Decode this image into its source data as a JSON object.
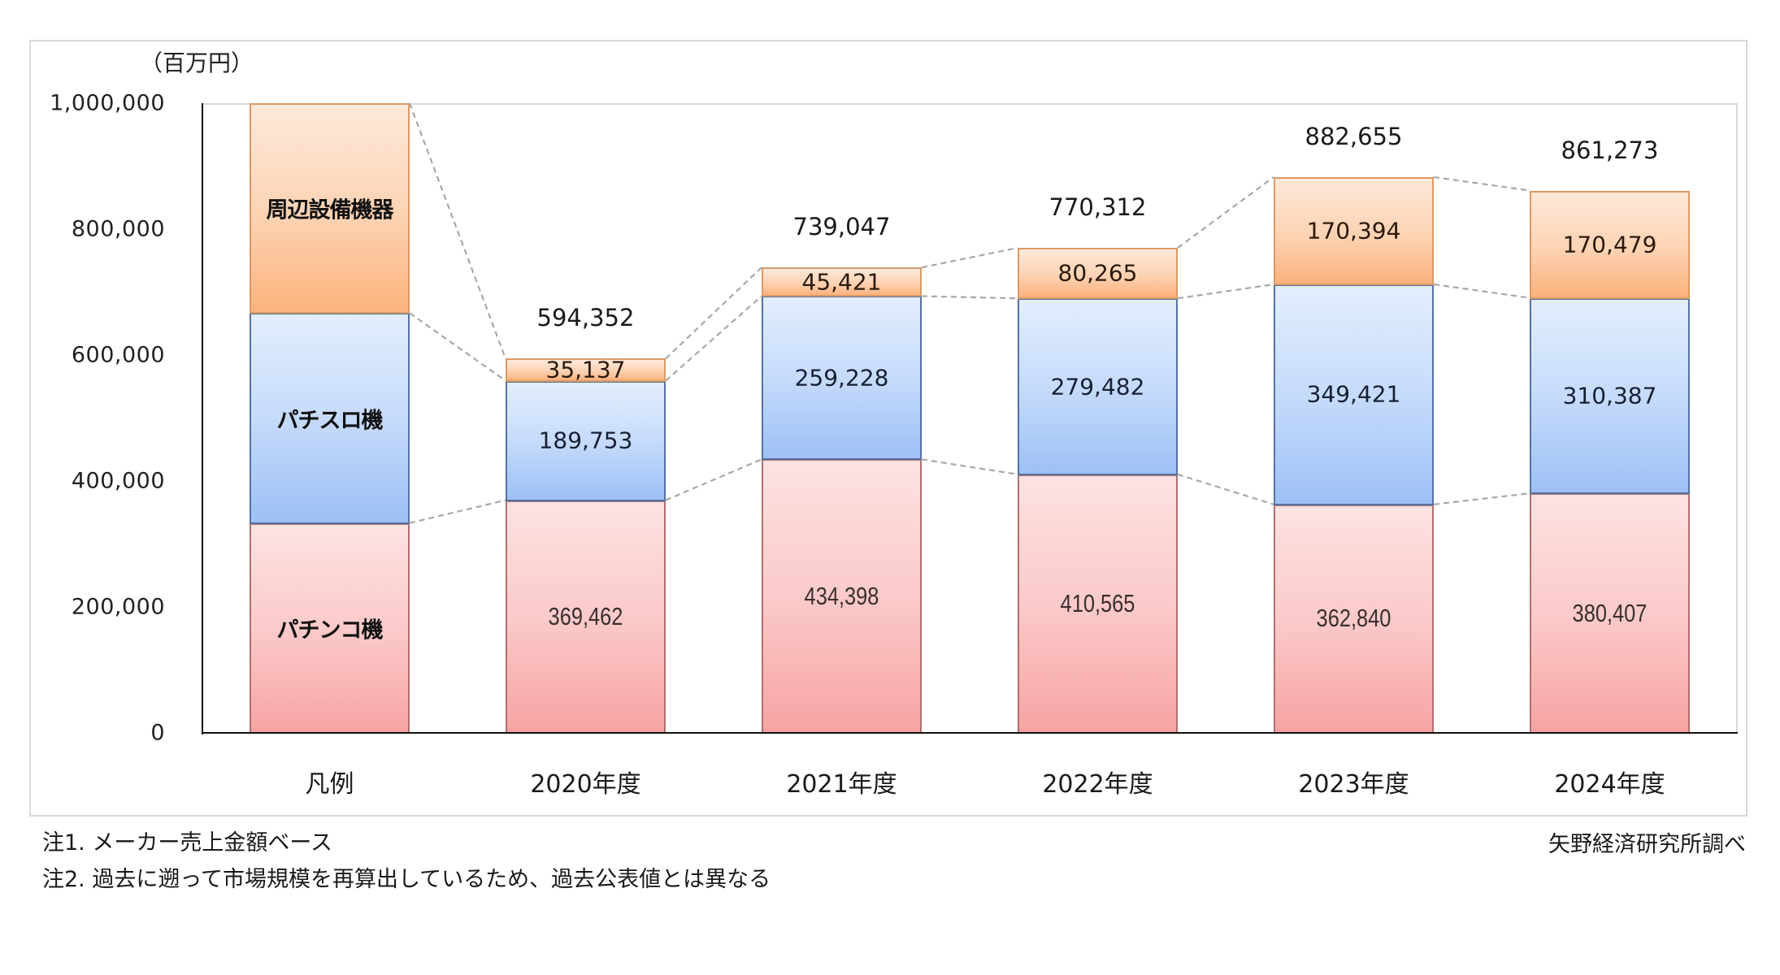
{
  "chart": {
    "unit_label": "（百万円）",
    "legend_category": "凡例",
    "source": "矢野経済研究所調べ",
    "notes": [
      "注1.  メーカー売上金額ベース",
      "注2.  過去に遡って市場規模を再算出しているため、過去公表値とは異なる"
    ]
  },
  "chart_data": {
    "type": "bar",
    "stacked": true,
    "title": "",
    "xlabel": "",
    "ylabel": "（百万円）",
    "ylim": [
      0,
      1000000
    ],
    "yticks": [
      0,
      200000,
      400000,
      600000,
      800000,
      1000000
    ],
    "ytick_labels": [
      "0",
      "200,000",
      "400,000",
      "600,000",
      "800,000",
      "1,000,000"
    ],
    "grid": false,
    "legend_position": "first-bar (凡例)",
    "categories": [
      "2020年度",
      "2021年度",
      "2022年度",
      "2023年度",
      "2024年度"
    ],
    "series": [
      {
        "name": "パチンコ機",
        "color": "#f8a3a3",
        "values": [
          369462,
          434398,
          410565,
          362840,
          380407
        ],
        "labels": [
          "369,462",
          "434,398",
          "410,565",
          "362,840",
          "380,407"
        ]
      },
      {
        "name": "パチスロ機",
        "color": "#9ec0f6",
        "values": [
          189753,
          259228,
          279482,
          349421,
          310387
        ],
        "labels": [
          "189,753",
          "259,228",
          "279,482",
          "349,421",
          "310,387"
        ]
      },
      {
        "name": "周辺設備機器",
        "color": "#fbb27c",
        "values": [
          35137,
          45421,
          80265,
          170394,
          170479
        ],
        "labels": [
          "35,137",
          "45,421",
          "80,265",
          "170,394",
          "170,479"
        ]
      }
    ],
    "totals": [
      594352,
      739047,
      770312,
      882655,
      861273
    ],
    "total_labels": [
      "594,352",
      "739,047",
      "770,312",
      "882,655",
      "861,273"
    ],
    "connector_lines": "dashed gray lines connecting segment boundaries of adjacent bars"
  }
}
